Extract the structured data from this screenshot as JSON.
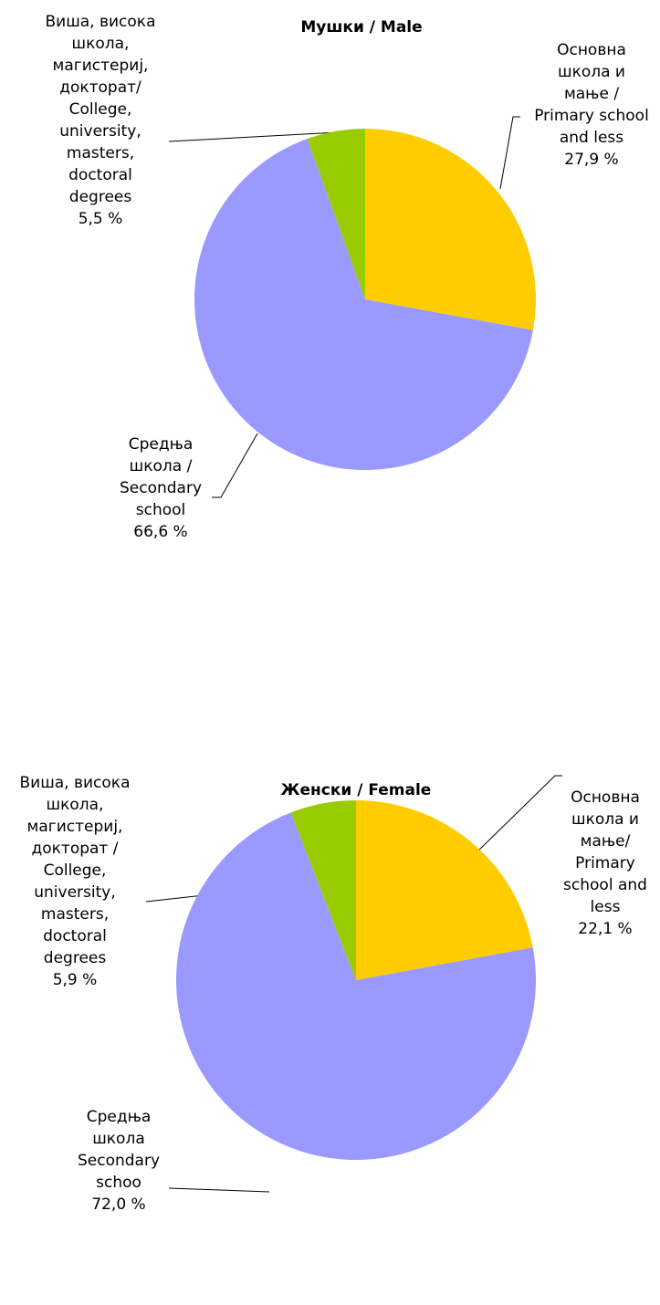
{
  "chart_data": [
    {
      "type": "pie",
      "title": "Мушки / Male",
      "categories": [
        "Основна\nшкола и\nмање /\nPrimary school\nand less",
        "Средња\nшкола /\nSecondary\nschool",
        "Виша, висока\nшкола,\nмагистериј,\nдокторат/\nCollege,\nuniversity,\nmasters,\ndoctoral\ndegrees"
      ],
      "values": [
        27.9,
        66.6,
        5.5
      ],
      "value_labels": [
        "27,9 %",
        "66,6 %",
        "5,5 %"
      ],
      "colors": [
        "#FFCC00",
        "#9999FF",
        "#99CC00"
      ]
    },
    {
      "type": "pie",
      "title": "Женски / Female",
      "categories": [
        "Основна\nшкола и\nмање/\nPrimary\nschool and\nless",
        "Средња\nшкола\nSecondary\nschoo",
        "Виша, висока\nшкола,\nмагистериј,\nдокторат /\nCollege,\nuniversity,\nmasters,\ndoctoral\ndegrees"
      ],
      "values": [
        22.1,
        72.0,
        5.9
      ],
      "value_labels": [
        "22,1 %",
        "72,0 %",
        "5,9 %"
      ],
      "colors": [
        "#FFCC00",
        "#9999FF",
        "#99CC00"
      ]
    }
  ]
}
